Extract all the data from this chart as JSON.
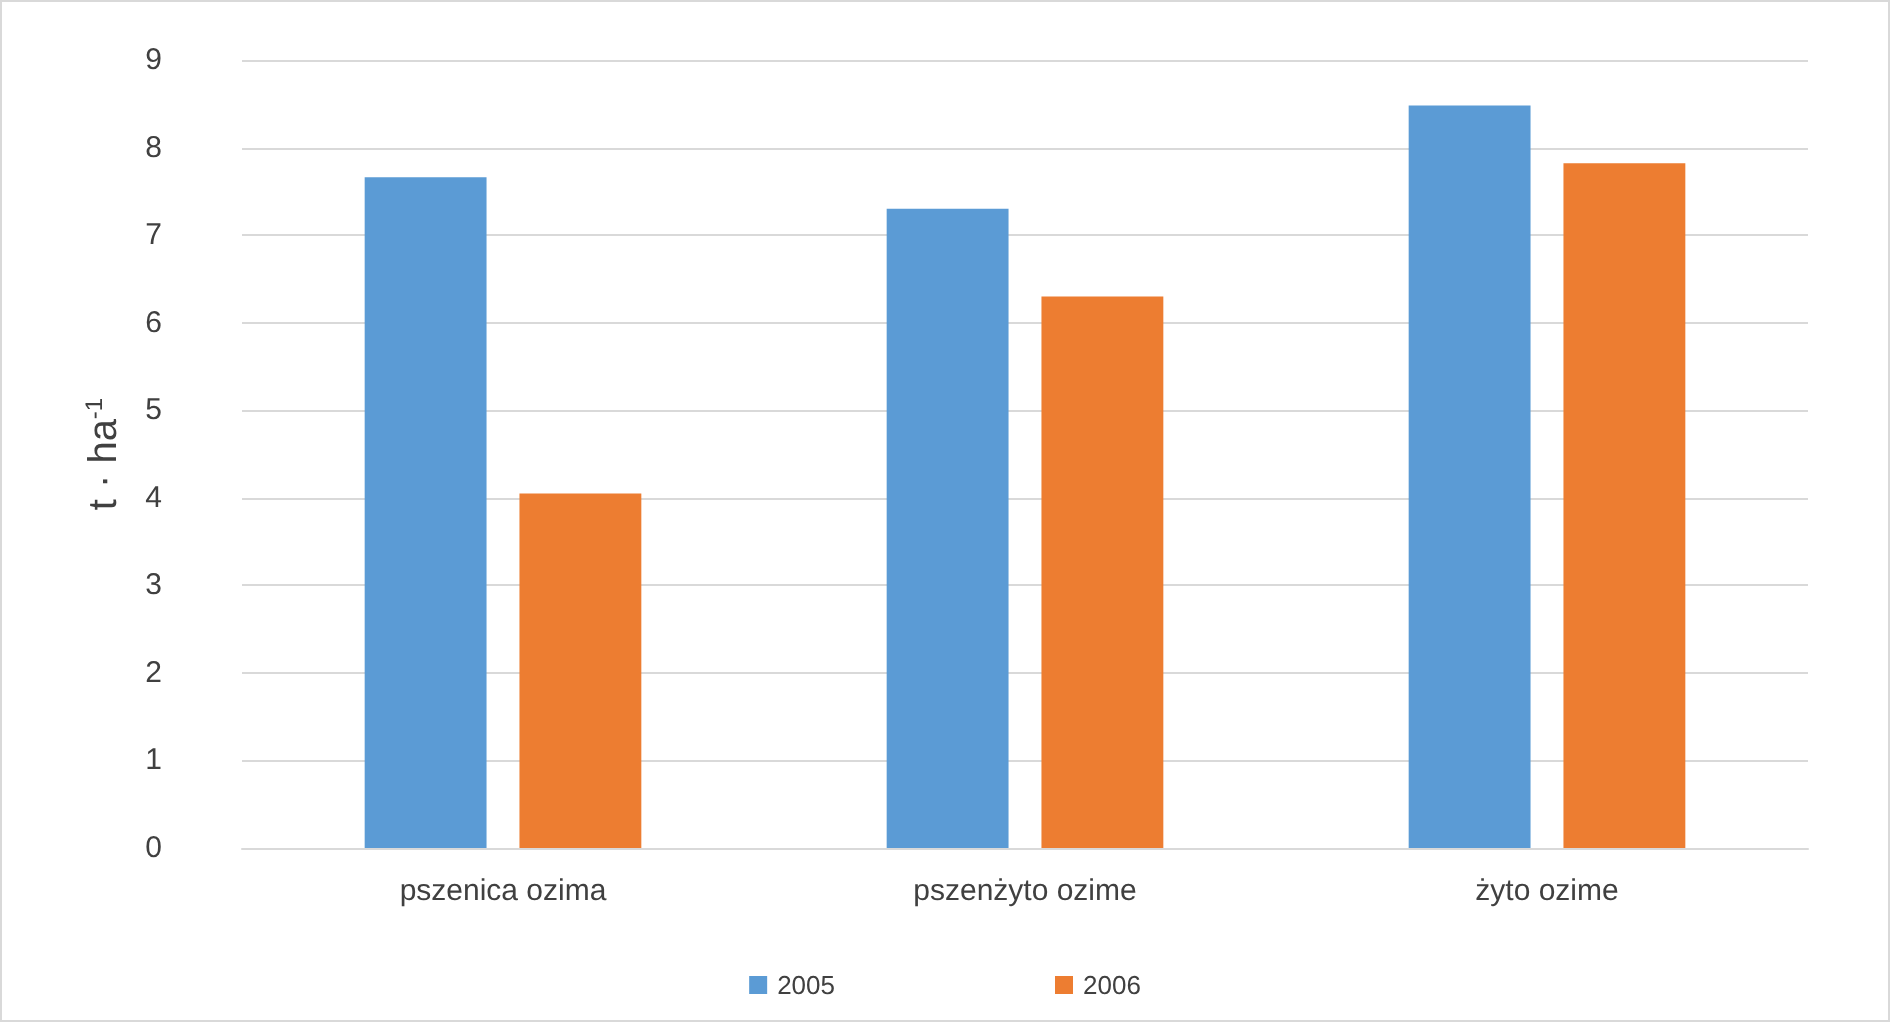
{
  "chart_data": {
    "type": "bar",
    "ylabel": "t · ha$^{-1}$",
    "categories": [
      "pszenica ozima",
      "pszenżyto ozime",
      "żyto ozime"
    ],
    "series": [
      {
        "name": "2005",
        "color": "#5b9bd5",
        "values": [
          7.66,
          7.3,
          8.48
        ]
      },
      {
        "name": "2006",
        "color": "#ed7d31",
        "values": [
          4.05,
          6.3,
          7.82
        ]
      }
    ],
    "ylim": [
      0,
      9
    ],
    "yticks": [
      0,
      1,
      2,
      3,
      4,
      5,
      6,
      7,
      8,
      9
    ],
    "grid": "y",
    "legend": "bottom"
  }
}
